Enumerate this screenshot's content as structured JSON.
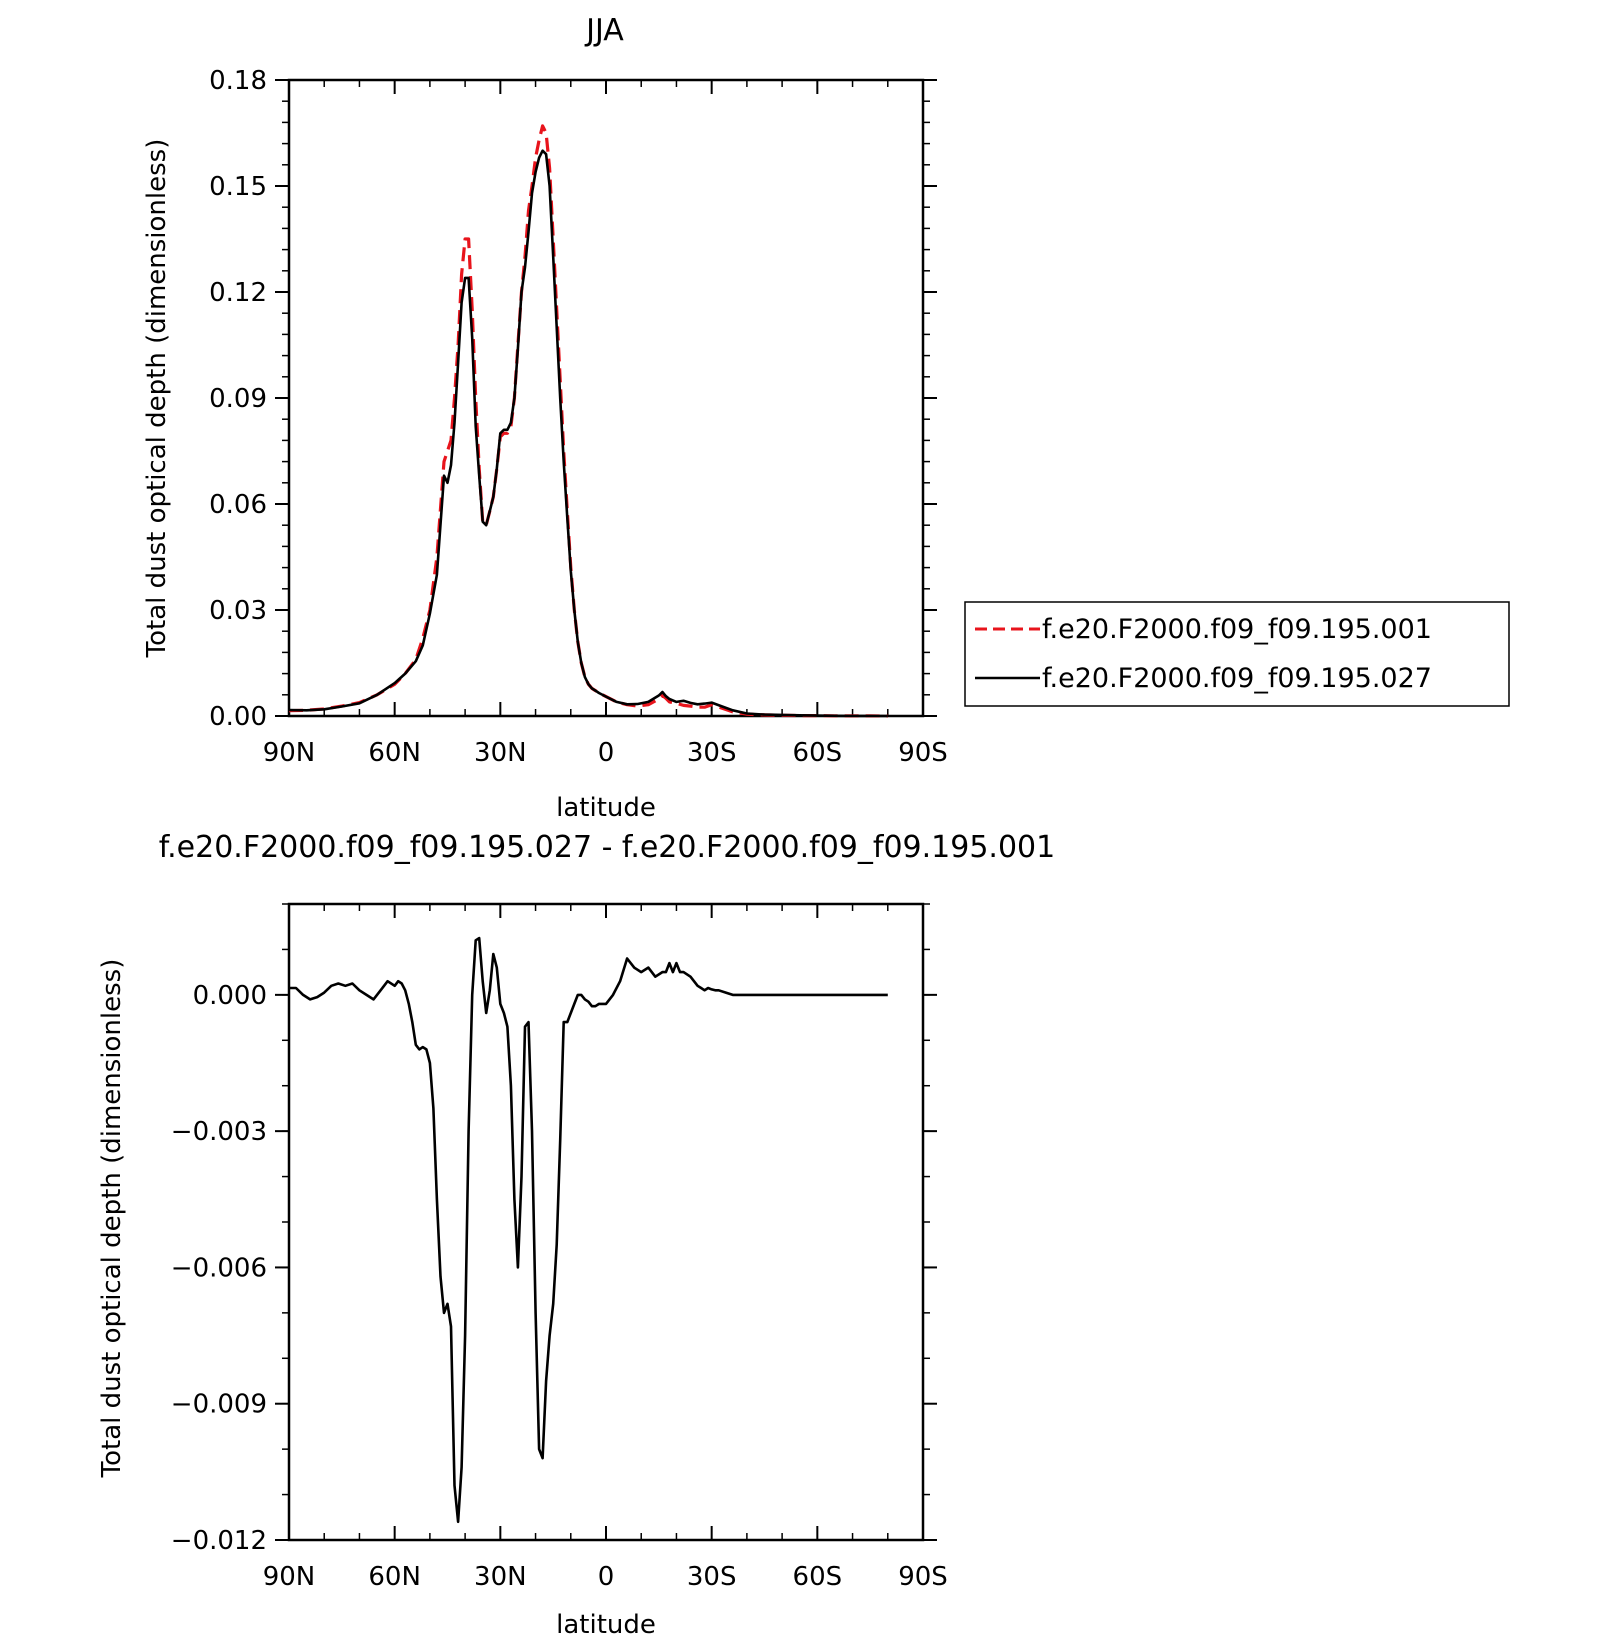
{
  "chart_data": [
    {
      "type": "line",
      "title": "JJA",
      "xlabel": "latitude",
      "ylabel": "Total dust optical depth (dimensionless)",
      "xlim": [
        90,
        -90
      ],
      "ylim": [
        0,
        0.18
      ],
      "x_ticks": [
        90,
        60,
        30,
        0,
        -30,
        -60,
        -90
      ],
      "x_tick_labels": [
        "90N",
        "60N",
        "30N",
        "0",
        "30S",
        "60S",
        "90S"
      ],
      "y_ticks": [
        0,
        0.03,
        0.06,
        0.09,
        0.12,
        0.15,
        0.18
      ],
      "y_tick_labels": [
        "0.00",
        "0.03",
        "0.06",
        "0.09",
        "0.12",
        "0.15",
        "0.18"
      ],
      "legend": "right",
      "series": [
        {
          "name": "f.e20.F2000.f09_f09.195.001",
          "color": "#e8141c",
          "dash": "dashed",
          "x": [
            90,
            85,
            80,
            75,
            70,
            65,
            60,
            57,
            54,
            52,
            50,
            48,
            46,
            45,
            44,
            43,
            42,
            41,
            40,
            39,
            38,
            37,
            36,
            35,
            34,
            33,
            32,
            31,
            30,
            29,
            28,
            27,
            26,
            25,
            24,
            23,
            22,
            21,
            20,
            19,
            18,
            17,
            16,
            15,
            14,
            13,
            12,
            11,
            10,
            9,
            8,
            7,
            6,
            5,
            4,
            3,
            2,
            0,
            -3,
            -6,
            -9,
            -12,
            -15,
            -16,
            -17,
            -18,
            -20,
            -22,
            -24,
            -26,
            -28,
            -30,
            -33,
            -36,
            -40,
            -45,
            -50,
            -55,
            -60,
            -65,
            -70,
            -75,
            -80
          ],
          "y": [
            0.0015,
            0.0016,
            0.002,
            0.0028,
            0.0038,
            0.006,
            0.009,
            0.012,
            0.016,
            0.022,
            0.03,
            0.045,
            0.072,
            0.075,
            0.078,
            0.09,
            0.105,
            0.125,
            0.135,
            0.135,
            0.115,
            0.09,
            0.07,
            0.055,
            0.054,
            0.058,
            0.062,
            0.07,
            0.079,
            0.08,
            0.08,
            0.082,
            0.09,
            0.105,
            0.12,
            0.13,
            0.143,
            0.15,
            0.158,
            0.163,
            0.167,
            0.165,
            0.155,
            0.135,
            0.115,
            0.095,
            0.075,
            0.058,
            0.042,
            0.03,
            0.021,
            0.015,
            0.011,
            0.009,
            0.0078,
            0.0072,
            0.0065,
            0.0055,
            0.004,
            0.0032,
            0.0028,
            0.0032,
            0.0048,
            0.0058,
            0.005,
            0.004,
            0.0036,
            0.003,
            0.0028,
            0.0025,
            0.0025,
            0.0032,
            0.0022,
            0.0012,
            0.0005,
            0.0003,
            0.0002,
            0.0001,
            0.0001,
            5e-05,
            3e-05,
            2e-05,
            1e-05
          ]
        },
        {
          "name": "f.e20.F2000.f09_f09.195.027",
          "color": "#000000",
          "dash": "solid",
          "x": [
            90,
            85,
            80,
            75,
            70,
            65,
            60,
            57,
            54,
            52,
            50,
            48,
            46,
            45,
            44,
            43,
            42,
            41,
            40,
            39,
            38,
            37,
            36,
            35,
            34,
            33,
            32,
            31,
            30,
            29,
            28,
            27,
            26,
            25,
            24,
            23,
            22,
            21,
            20,
            19,
            18,
            17,
            16,
            15,
            14,
            13,
            12,
            11,
            10,
            9,
            8,
            7,
            6,
            5,
            4,
            3,
            2,
            0,
            -3,
            -6,
            -9,
            -12,
            -15,
            -16,
            -17,
            -18,
            -20,
            -22,
            -24,
            -26,
            -28,
            -30,
            -33,
            -36,
            -40,
            -45,
            -50,
            -55,
            -60,
            -65,
            -70,
            -75,
            -80
          ],
          "y": [
            0.0017,
            0.0016,
            0.0019,
            0.0027,
            0.0036,
            0.006,
            0.0093,
            0.012,
            0.0155,
            0.02,
            0.029,
            0.04,
            0.068,
            0.066,
            0.071,
            0.083,
            0.1,
            0.117,
            0.124,
            0.124,
            0.107,
            0.082,
            0.068,
            0.055,
            0.054,
            0.058,
            0.062,
            0.07,
            0.08,
            0.081,
            0.081,
            0.083,
            0.09,
            0.104,
            0.12,
            0.127,
            0.137,
            0.148,
            0.154,
            0.158,
            0.16,
            0.159,
            0.15,
            0.13,
            0.11,
            0.09,
            0.072,
            0.056,
            0.041,
            0.03,
            0.021,
            0.015,
            0.011,
            0.009,
            0.0078,
            0.0072,
            0.0065,
            0.0055,
            0.004,
            0.0033,
            0.0034,
            0.004,
            0.0058,
            0.0068,
            0.0056,
            0.0048,
            0.004,
            0.0043,
            0.0037,
            0.0033,
            0.0035,
            0.0038,
            0.0027,
            0.0016,
            0.0007,
            0.0004,
            0.0003,
            0.0002,
            0.0001,
            5e-05,
            3e-05,
            2e-05,
            1e-05
          ]
        }
      ]
    },
    {
      "type": "line",
      "title": "f.e20.F2000.f09_f09.195.027 - f.e20.F2000.f09_f09.195.001",
      "xlabel": "latitude",
      "ylabel": "Total dust optical depth (dimensionless)",
      "xlim": [
        90,
        -90
      ],
      "ylim": [
        -0.012,
        0.002
      ],
      "x_ticks": [
        90,
        60,
        30,
        0,
        -30,
        -60,
        -90
      ],
      "x_tick_labels": [
        "90N",
        "60N",
        "30N",
        "0",
        "30S",
        "60S",
        "90S"
      ],
      "y_ticks": [
        0,
        -0.003,
        -0.006,
        -0.009,
        -0.012
      ],
      "y_tick_labels": [
        "0.000",
        "−0.003",
        "−0.006",
        "−0.009",
        "−0.012"
      ],
      "series": [
        {
          "color": "#000000",
          "dash": "solid",
          "x": [
            90,
            88,
            86,
            84,
            82,
            80,
            78,
            76,
            74,
            72,
            70,
            68,
            66,
            64,
            62,
            60,
            59,
            58,
            57,
            56,
            55,
            54,
            53,
            52,
            51,
            50,
            49,
            48,
            47,
            46,
            45,
            44,
            43,
            42,
            41,
            40,
            39,
            38,
            37,
            36,
            35,
            34,
            33,
            32,
            31,
            30,
            29,
            28,
            27,
            26,
            25,
            24,
            23,
            22,
            21,
            20,
            19,
            18,
            17,
            16,
            15,
            14,
            13,
            12,
            11,
            10,
            9,
            8,
            7,
            6,
            5,
            4,
            3,
            2,
            0,
            -2,
            -4,
            -6,
            -8,
            -10,
            -12,
            -14,
            -16,
            -17,
            -18,
            -19,
            -20,
            -21,
            -22,
            -24,
            -26,
            -27,
            -28,
            -29,
            -30,
            -31,
            -32,
            -34,
            -36,
            -38,
            -40,
            -42,
            -46,
            -50,
            -55,
            -60,
            -65,
            -70,
            -75,
            -80
          ],
          "y": [
            0.00015,
            0.00015,
            0.0,
            -0.0001,
            -5e-05,
            5e-05,
            0.0002,
            0.00025,
            0.0002,
            0.00025,
            0.0001,
            0.0,
            -0.0001,
            0.0001,
            0.0003,
            0.0002,
            0.0003,
            0.00025,
            0.0001,
            -0.0002,
            -0.0006,
            -0.0011,
            -0.0012,
            -0.00115,
            -0.0012,
            -0.0015,
            -0.0025,
            -0.0045,
            -0.0062,
            -0.007,
            -0.0068,
            -0.0073,
            -0.0108,
            -0.0116,
            -0.0104,
            -0.0075,
            -0.003,
            0.0,
            0.0012,
            0.00125,
            0.0003,
            -0.0004,
            0.0001,
            0.0009,
            0.0006,
            -0.0002,
            -0.0004,
            -0.0007,
            -0.002,
            -0.0045,
            -0.006,
            -0.004,
            -0.0007,
            -0.0006,
            -0.003,
            -0.007,
            -0.01,
            -0.0102,
            -0.0085,
            -0.0075,
            -0.0068,
            -0.0055,
            -0.0032,
            -0.0006,
            -0.0006,
            -0.0004,
            -0.0002,
            0.0,
            0.0,
            -0.0001,
            -0.00015,
            -0.00025,
            -0.00025,
            -0.0002,
            -0.0002,
            0.0,
            0.0003,
            0.0008,
            0.0006,
            0.0005,
            0.0006,
            0.0004,
            0.0005,
            0.0005,
            0.0007,
            0.0005,
            0.0007,
            0.0005,
            0.0005,
            0.0004,
            0.0002,
            0.00015,
            0.0001,
            0.00015,
            0.00012,
            0.0001,
            0.0001,
            5e-05,
            0.0,
            0.0,
            0.0,
            0.0,
            0.0,
            0.0,
            0.0,
            0.0,
            0.0,
            0.0,
            0.0,
            0.0
          ]
        }
      ]
    }
  ]
}
